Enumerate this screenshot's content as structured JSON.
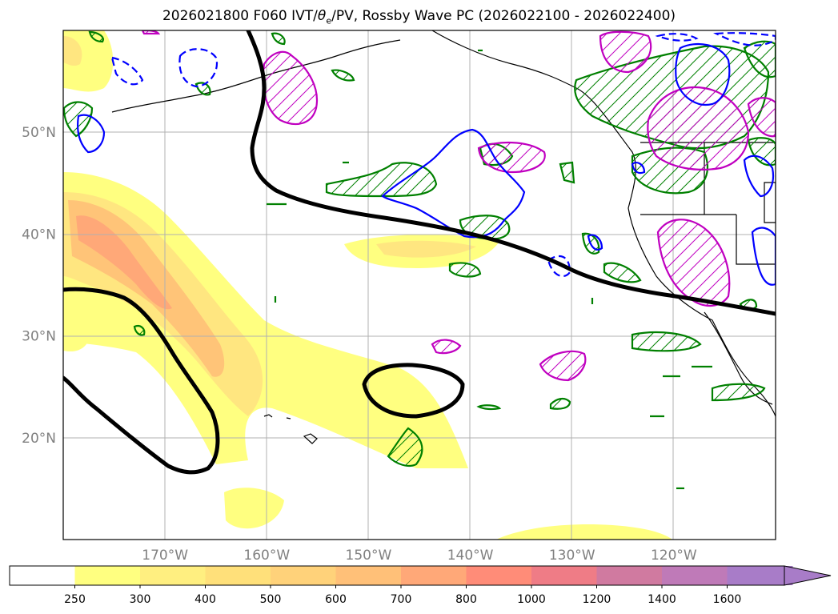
{
  "title": {
    "prefix": "2026021800 F060 IVT/",
    "theta": "θ",
    "theta_sub": "e",
    "suffix": "/PV, Rossby Wave PC (2026022100 - 2026022400)"
  },
  "map": {
    "lon_range": [
      -180,
      -110
    ],
    "lat_range": [
      10,
      60
    ],
    "lon_ticks": [
      {
        "lon": -170,
        "label": "170°W"
      },
      {
        "lon": -160,
        "label": "160°W"
      },
      {
        "lon": -150,
        "label": "150°W"
      },
      {
        "lon": -140,
        "label": "140°W"
      },
      {
        "lon": -130,
        "label": "130°W"
      },
      {
        "lon": -120,
        "label": "120°W"
      }
    ],
    "lat_ticks": [
      {
        "lat": 20,
        "label": "20°N"
      },
      {
        "lat": 30,
        "label": "30°N"
      },
      {
        "lat": 40,
        "label": "40°N"
      },
      {
        "lat": 50,
        "label": "50°N"
      }
    ],
    "grid": true,
    "tick_label_color": "#808080",
    "contour_colors": {
      "pv": "#000000",
      "positive_pc": "#008000",
      "negative_pc": "#0000ff",
      "magenta": "#c000c0"
    }
  },
  "colorbar": {
    "levels": [
      "250",
      "300",
      "400",
      "500",
      "600",
      "700",
      "800",
      "1000",
      "1200",
      "1400",
      "1600"
    ],
    "colors": [
      "#ffffff",
      "#ffff80",
      "#ffef80",
      "#ffe07a",
      "#ffd27a",
      "#ffc078",
      "#ffa878",
      "#ff8c78",
      "#ef7c86",
      "#d07aa0",
      "#bf7ab8",
      "#a87cc8"
    ],
    "extend": "max"
  }
}
